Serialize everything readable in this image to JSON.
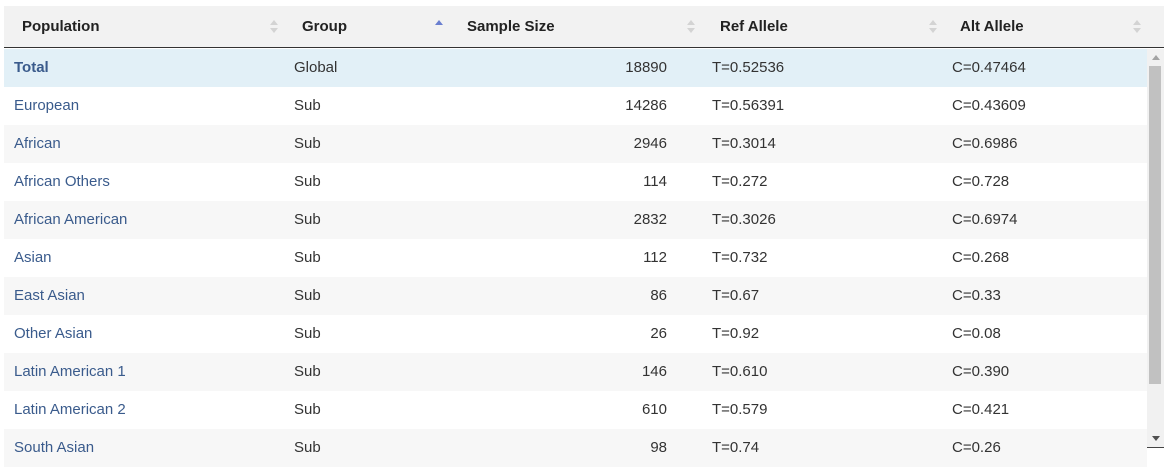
{
  "table": {
    "headers": {
      "population": "Population",
      "group": "Group",
      "sample_size": "Sample Size",
      "ref_allele": "Ref Allele",
      "alt_allele": "Alt Allele"
    },
    "sorted_column": "group",
    "sort_direction": "ascending",
    "rows": [
      {
        "population": "Total",
        "group": "Global",
        "sample_size": "18890",
        "ref": "T=0.52536",
        "alt": "C=0.47464"
      },
      {
        "population": "European",
        "group": "Sub",
        "sample_size": "14286",
        "ref": "T=0.56391",
        "alt": "C=0.43609"
      },
      {
        "population": "African",
        "group": "Sub",
        "sample_size": "2946",
        "ref": "T=0.3014",
        "alt": "C=0.6986"
      },
      {
        "population": "African Others",
        "group": "Sub",
        "sample_size": "114",
        "ref": "T=0.272",
        "alt": "C=0.728"
      },
      {
        "population": "African American",
        "group": "Sub",
        "sample_size": "2832",
        "ref": "T=0.3026",
        "alt": "C=0.6974"
      },
      {
        "population": "Asian",
        "group": "Sub",
        "sample_size": "112",
        "ref": "T=0.732",
        "alt": "C=0.268"
      },
      {
        "population": "East Asian",
        "group": "Sub",
        "sample_size": "86",
        "ref": "T=0.67",
        "alt": "C=0.33"
      },
      {
        "population": "Other Asian",
        "group": "Sub",
        "sample_size": "26",
        "ref": "T=0.92",
        "alt": "C=0.08"
      },
      {
        "population": "Latin American 1",
        "group": "Sub",
        "sample_size": "146",
        "ref": "T=0.610",
        "alt": "C=0.390"
      },
      {
        "population": "Latin American 2",
        "group": "Sub",
        "sample_size": "610",
        "ref": "T=0.579",
        "alt": "C=0.421"
      },
      {
        "population": "South Asian",
        "group": "Sub",
        "sample_size": "98",
        "ref": "T=0.74",
        "alt": "C=0.26"
      }
    ]
  },
  "colors": {
    "link": "#3a5b8c",
    "highlight_row": "#e2f0f7",
    "sort_active": "#6a7fd0"
  }
}
